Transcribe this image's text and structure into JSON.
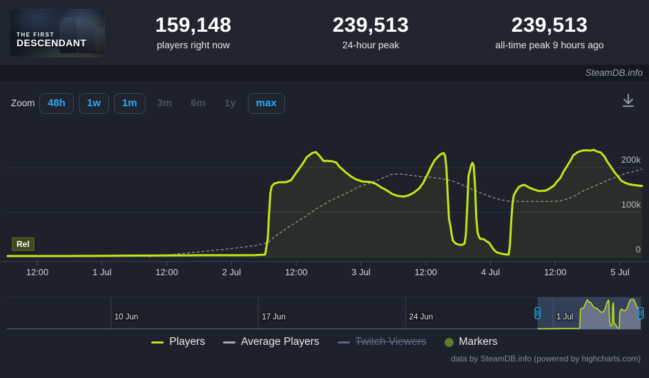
{
  "colors": {
    "players": "#c5e617",
    "average": "#a7adb3",
    "twitch": "#566b80",
    "markers": "#5c7a30",
    "accent_blue": "#2fa8f4",
    "grid": "#2d3642",
    "axis": "#3a4450",
    "window_fill": "rgba(105,135,195,0.30)",
    "handle": "#2eb2f2"
  },
  "header": {
    "game_capsule": {
      "line1": "THE FIRST",
      "line2": "DESCENDANT"
    },
    "stats": [
      {
        "value": "159,148",
        "label": "players right now"
      },
      {
        "value": "239,513",
        "label": "24-hour peak"
      },
      {
        "value": "239,513",
        "label": "all-time peak 9 hours ago"
      }
    ]
  },
  "brand_bar": {
    "text": "SteamDB.info"
  },
  "toolbar": {
    "zoom_label": "Zoom",
    "buttons": [
      {
        "label": "48h",
        "enabled": true
      },
      {
        "label": "1w",
        "enabled": true
      },
      {
        "label": "1m",
        "enabled": true
      },
      {
        "label": "3m",
        "enabled": false
      },
      {
        "label": "6m",
        "enabled": false
      },
      {
        "label": "1y",
        "enabled": false
      },
      {
        "label": "max",
        "enabled": true
      }
    ],
    "download_icon": "download-icon"
  },
  "chart_data": {
    "type": "line",
    "title": "",
    "xlabel": "",
    "ylabel": "",
    "x_unit": "days since 30 Jun 00:00",
    "ylim": [
      0,
      250000
    ],
    "grid": true,
    "legend_position": "bottom",
    "release_marker": {
      "label": "Rel",
      "x": 0.27
    },
    "y_axis": {
      "ticks": [
        {
          "label": "0",
          "v": 0
        },
        {
          "label": "100k",
          "v": 100000
        },
        {
          "label": "200k",
          "v": 200000
        }
      ]
    },
    "x_axis": {
      "ticks": [
        {
          "label": "12:00",
          "d": 0.5
        },
        {
          "label": "1 Jul",
          "d": 1
        },
        {
          "label": "12:00",
          "d": 1.5
        },
        {
          "label": "2 Jul",
          "d": 2
        },
        {
          "label": "12:00",
          "d": 2.5
        },
        {
          "label": "3 Jul",
          "d": 3
        },
        {
          "label": "12:00",
          "d": 3.5
        },
        {
          "label": "4 Jul",
          "d": 4
        },
        {
          "label": "12:00",
          "d": 4.5
        },
        {
          "label": "5 Jul",
          "d": 5
        }
      ]
    },
    "series": [
      {
        "name": "Players",
        "dashed": false,
        "points": [
          [
            0.27,
            3000
          ],
          [
            0.75,
            3000
          ],
          [
            1.28,
            3800
          ],
          [
            1.81,
            4600
          ],
          [
            2.02,
            4600
          ],
          [
            2.18,
            4800
          ],
          [
            2.26,
            6100
          ],
          [
            2.28,
            43000
          ],
          [
            2.29,
            97000
          ],
          [
            2.3,
            143000
          ],
          [
            2.31,
            158000
          ],
          [
            2.33,
            164500
          ],
          [
            2.37,
            167500
          ],
          [
            2.42,
            167500
          ],
          [
            2.46,
            172000
          ],
          [
            2.5,
            189000
          ],
          [
            2.55,
            209000
          ],
          [
            2.58,
            223000
          ],
          [
            2.62,
            232000
          ],
          [
            2.65,
            235000
          ],
          [
            2.68,
            226000
          ],
          [
            2.71,
            215000
          ],
          [
            2.74,
            215000
          ],
          [
            2.78,
            214000
          ],
          [
            2.81,
            211000
          ],
          [
            2.83,
            203000
          ],
          [
            2.88,
            190000
          ],
          [
            2.92,
            181000
          ],
          [
            2.96,
            174000
          ],
          [
            3.01,
            169000
          ],
          [
            3.07,
            168000
          ],
          [
            3.11,
            164500
          ],
          [
            3.15,
            157000
          ],
          [
            3.2,
            149000
          ],
          [
            3.24,
            141500
          ],
          [
            3.28,
            137000
          ],
          [
            3.33,
            135400
          ],
          [
            3.37,
            138500
          ],
          [
            3.41,
            144600
          ],
          [
            3.45,
            153800
          ],
          [
            3.48,
            166000
          ],
          [
            3.51,
            183000
          ],
          [
            3.54,
            201500
          ],
          [
            3.57,
            217000
          ],
          [
            3.6,
            226000
          ],
          [
            3.62,
            230800
          ],
          [
            3.64,
            232300
          ],
          [
            3.65,
            226000
          ],
          [
            3.66,
            197000
          ],
          [
            3.67,
            135000
          ],
          [
            3.68,
            84600
          ],
          [
            3.69,
            70800
          ],
          [
            3.7,
            50800
          ],
          [
            3.71,
            37000
          ],
          [
            3.73,
            30800
          ],
          [
            3.76,
            27700
          ],
          [
            3.78,
            27700
          ],
          [
            3.8,
            30800
          ],
          [
            3.81,
            50800
          ],
          [
            3.82,
            112000
          ],
          [
            3.83,
            181500
          ],
          [
            3.85,
            204600
          ],
          [
            3.86,
            210800
          ],
          [
            3.87,
            204600
          ],
          [
            3.88,
            161500
          ],
          [
            3.89,
            89000
          ],
          [
            3.9,
            55400
          ],
          [
            3.91,
            46000
          ],
          [
            3.92,
            41500
          ],
          [
            3.95,
            40000
          ],
          [
            3.97,
            35400
          ],
          [
            3.99,
            32300
          ],
          [
            4.01,
            23000
          ],
          [
            4.03,
            15400
          ],
          [
            4.05,
            10800
          ],
          [
            4.09,
            7700
          ],
          [
            4.12,
            6100
          ],
          [
            4.14,
            6100
          ],
          [
            4.15,
            27700
          ],
          [
            4.16,
            81500
          ],
          [
            4.17,
            120000
          ],
          [
            4.18,
            138500
          ],
          [
            4.2,
            149000
          ],
          [
            4.22,
            157000
          ],
          [
            4.24,
            160000
          ],
          [
            4.26,
            161500
          ],
          [
            4.28,
            158500
          ],
          [
            4.31,
            154000
          ],
          [
            4.34,
            151000
          ],
          [
            4.37,
            148000
          ],
          [
            4.4,
            148000
          ],
          [
            4.43,
            149000
          ],
          [
            4.46,
            154000
          ],
          [
            4.49,
            160000
          ],
          [
            4.51,
            167700
          ],
          [
            4.54,
            177000
          ],
          [
            4.56,
            189000
          ],
          [
            4.59,
            203000
          ],
          [
            4.62,
            217000
          ],
          [
            4.64,
            227700
          ],
          [
            4.67,
            234000
          ],
          [
            4.69,
            236500
          ],
          [
            4.71,
            238000
          ],
          [
            4.74,
            239000
          ],
          [
            4.77,
            238000
          ],
          [
            4.8,
            239513
          ],
          [
            4.82,
            236000
          ],
          [
            4.85,
            234000
          ],
          [
            4.88,
            224600
          ],
          [
            4.9,
            213800
          ],
          [
            4.93,
            201500
          ],
          [
            4.96,
            189000
          ],
          [
            4.99,
            178500
          ],
          [
            5.01,
            170800
          ],
          [
            5.04,
            166000
          ],
          [
            5.07,
            163000
          ],
          [
            5.1,
            161500
          ],
          [
            5.14,
            160000
          ],
          [
            5.17,
            159148
          ]
        ]
      },
      {
        "name": "Average Players",
        "dashed": true,
        "points": [
          [
            1.36,
            1500
          ],
          [
            1.54,
            6100
          ],
          [
            1.81,
            13800
          ],
          [
            2.02,
            20000
          ],
          [
            2.18,
            26000
          ],
          [
            2.28,
            32300
          ],
          [
            2.34,
            47700
          ],
          [
            2.45,
            69000
          ],
          [
            2.56,
            89000
          ],
          [
            2.66,
            109000
          ],
          [
            2.77,
            127700
          ],
          [
            2.88,
            141500
          ],
          [
            2.98,
            157000
          ],
          [
            3.09,
            167700
          ],
          [
            3.17,
            177000
          ],
          [
            3.23,
            184600
          ],
          [
            3.3,
            186000
          ],
          [
            3.38,
            183000
          ],
          [
            3.46,
            180000
          ],
          [
            3.54,
            178500
          ],
          [
            3.62,
            175400
          ],
          [
            3.7,
            170800
          ],
          [
            3.77,
            163000
          ],
          [
            3.83,
            155400
          ],
          [
            3.9,
            146000
          ],
          [
            3.97,
            138500
          ],
          [
            4.03,
            132300
          ],
          [
            4.09,
            127700
          ],
          [
            4.15,
            124600
          ],
          [
            4.23,
            124600
          ],
          [
            4.31,
            124600
          ],
          [
            4.39,
            124600
          ],
          [
            4.48,
            124600
          ],
          [
            4.54,
            126000
          ],
          [
            4.6,
            130800
          ],
          [
            4.66,
            138500
          ],
          [
            4.72,
            149000
          ],
          [
            4.79,
            157000
          ],
          [
            4.86,
            166000
          ],
          [
            4.92,
            173800
          ],
          [
            4.99,
            181500
          ],
          [
            5.05,
            187700
          ],
          [
            5.12,
            192300
          ],
          [
            5.17,
            196900
          ]
        ]
      }
    ]
  },
  "navigator": {
    "labels": [
      {
        "label": "10 Jun",
        "d": -20
      },
      {
        "label": "17 Jun",
        "d": -13
      },
      {
        "label": "24 Jun",
        "d": -6
      },
      {
        "label": "1 Jul",
        "d": 1
      }
    ],
    "window": {
      "from_d": 0.2654,
      "to_d": 5.1704
    }
  },
  "legend": [
    {
      "label": "Players",
      "swatch": "line",
      "color": "#c5e617",
      "active": true
    },
    {
      "label": "Average Players",
      "swatch": "line",
      "color": "#a7adb3",
      "active": true
    },
    {
      "label": "Twitch Viewers",
      "swatch": "line",
      "color": "#566b80",
      "active": false
    },
    {
      "label": "Markers",
      "swatch": "circle",
      "color": "#5c7a30",
      "active": true
    }
  ],
  "credits": "data by SteamDB.info (powered by highcharts.com)"
}
